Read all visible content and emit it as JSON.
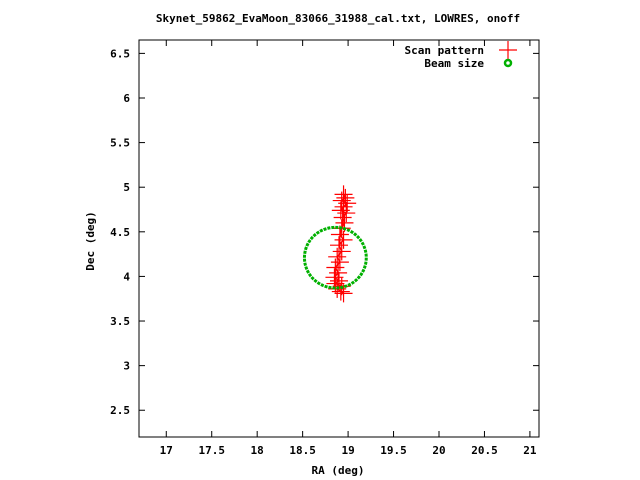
{
  "chart_data": {
    "type": "scatter",
    "title": "Skynet_59862_EvaMoon_83066_31988_cal.txt, LOWRES, onoff",
    "xlabel": "RA (deg)",
    "ylabel": "Dec (deg)",
    "xlim": [
      16.7,
      21.1
    ],
    "ylim": [
      2.2,
      6.65
    ],
    "x_ticks": [
      17,
      17.5,
      18,
      18.5,
      19,
      19.5,
      20,
      20.5,
      21
    ],
    "x_tick_labels": [
      "17",
      "17.5",
      "18",
      "18.5",
      "19",
      "19.5",
      "20",
      "20.5",
      "21"
    ],
    "y_ticks": [
      2.5,
      3,
      3.5,
      4,
      4.5,
      5,
      5.5,
      6,
      6.5
    ],
    "y_tick_labels": [
      "2.5",
      "3",
      "3.5",
      "4",
      "4.5",
      "5",
      "5.5",
      "6",
      "6.5"
    ],
    "grid": false,
    "legend_position": "top-right",
    "series": [
      {
        "name": "Scan pattern",
        "marker": "plus",
        "color": "#ff0000",
        "points": [
          [
            18.95,
            4.92
          ],
          [
            18.97,
            4.88
          ],
          [
            18.93,
            4.85
          ],
          [
            18.99,
            4.82
          ],
          [
            18.95,
            4.78
          ],
          [
            18.92,
            4.74
          ],
          [
            18.98,
            4.71
          ],
          [
            18.94,
            4.66
          ],
          [
            18.96,
            4.6
          ],
          [
            18.93,
            4.54
          ],
          [
            18.91,
            4.47
          ],
          [
            18.95,
            4.41
          ],
          [
            18.9,
            4.35
          ],
          [
            18.93,
            4.28
          ],
          [
            18.88,
            4.22
          ],
          [
            18.91,
            4.16
          ],
          [
            18.86,
            4.1
          ],
          [
            18.89,
            4.04
          ],
          [
            18.85,
            3.99
          ],
          [
            18.9,
            3.95
          ],
          [
            18.86,
            3.92
          ],
          [
            18.93,
            3.89
          ],
          [
            18.88,
            3.86
          ],
          [
            18.92,
            3.83
          ],
          [
            18.95,
            3.81
          ]
        ]
      },
      {
        "name": "Beam size",
        "marker": "circle",
        "color": "#00b000",
        "center": [
          18.86,
          4.21
        ],
        "radius_x": 0.34,
        "radius_y": 0.34
      }
    ]
  }
}
